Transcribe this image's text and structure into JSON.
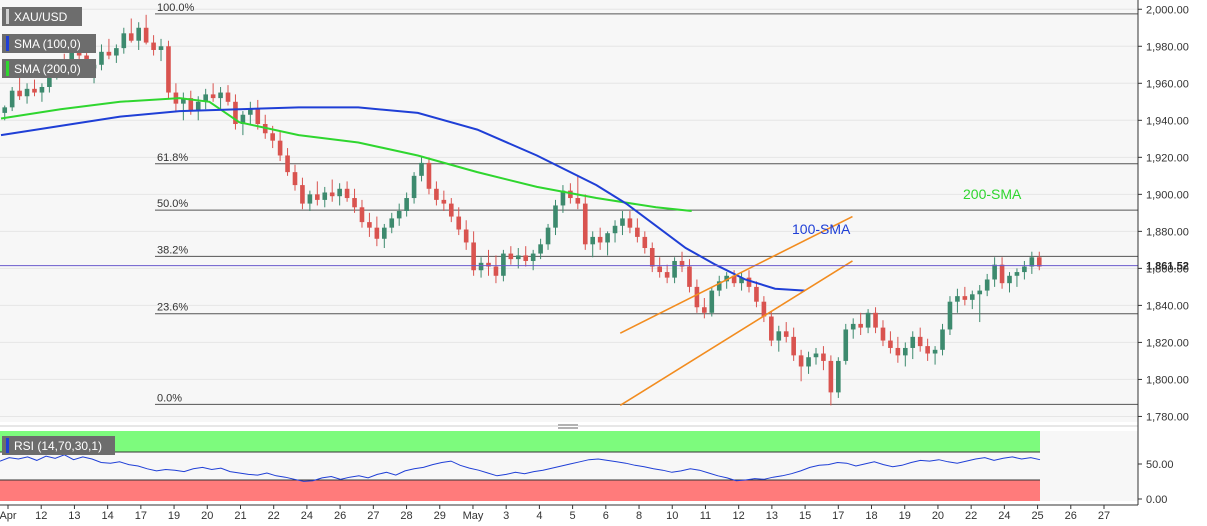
{
  "chart_data": [
    {
      "type": "candlestick",
      "title": "XAU/USD",
      "legend": [
        {
          "label": "XAU/USD",
          "color": "#d0d0d0"
        },
        {
          "label": "SMA (100,0)",
          "color": "#1f3fd6"
        },
        {
          "label": "SMA (200,0)",
          "color": "#2fd62f"
        }
      ],
      "price_axis": {
        "range": [
          1777,
          2005
        ],
        "ticks": [
          "2,000.00",
          "1,980.00",
          "1,960.00",
          "1,940.00",
          "1,920.00",
          "1,900.00",
          "1,880.00",
          "1,860.00",
          "1,840.00",
          "1,820.00",
          "1,800.00",
          "1,780.00"
        ],
        "tick_values": [
          2000,
          1980,
          1960,
          1940,
          1920,
          1900,
          1880,
          1860,
          1840,
          1820,
          1800,
          1780
        ]
      },
      "x_axis": {
        "labels": [
          "Apr",
          "12",
          "13",
          "14",
          "17",
          "19",
          "20",
          "21",
          "22",
          "24",
          "26",
          "27",
          "28",
          "29",
          "May",
          "3",
          "4",
          "5",
          "6",
          "8",
          "10",
          "11",
          "12",
          "13",
          "15",
          "17",
          "18",
          "19",
          "20",
          "22",
          "24",
          "25",
          "26",
          "27"
        ]
      },
      "current_price": {
        "value": 1861.52,
        "label": "1,861.52",
        "color": "#6a5acd"
      },
      "fibonacci": [
        {
          "label": "100.0%",
          "price": 1997.5
        },
        {
          "label": "61.8%",
          "price": 1916.5
        },
        {
          "label": "50.0%",
          "price": 1891.5
        },
        {
          "label": "38.2%",
          "price": 1866.5
        },
        {
          "label": "23.6%",
          "price": 1835.5
        },
        {
          "label": "0.0%",
          "price": 1786.5
        }
      ],
      "sma_100": {
        "label": "100-SMA",
        "color": "#1f3fd6",
        "points": [
          [
            0,
            1932
          ],
          [
            20,
            1937
          ],
          [
            40,
            1942
          ],
          [
            60,
            1945
          ],
          [
            80,
            1946
          ],
          [
            100,
            1947
          ],
          [
            120,
            1947
          ],
          [
            140,
            1944
          ],
          [
            160,
            1935
          ],
          [
            180,
            1921
          ],
          [
            200,
            1905
          ],
          [
            210,
            1895
          ],
          [
            220,
            1883
          ],
          [
            230,
            1871
          ],
          [
            240,
            1862
          ],
          [
            250,
            1854
          ],
          [
            260,
            1849
          ],
          [
            270,
            1848
          ]
        ]
      },
      "sma_200": {
        "label": "200-SMA",
        "color": "#2fd62f",
        "points": [
          [
            0,
            1941
          ],
          [
            20,
            1946
          ],
          [
            40,
            1950
          ],
          [
            60,
            1952
          ],
          [
            70,
            1950
          ],
          [
            80,
            1939
          ],
          [
            100,
            1932
          ],
          [
            120,
            1928
          ],
          [
            140,
            1921
          ],
          [
            160,
            1912
          ],
          [
            180,
            1904
          ],
          [
            200,
            1898
          ],
          [
            220,
            1893
          ],
          [
            232,
            1891
          ]
        ]
      },
      "channel_upper": {
        "color": "#f28c1f",
        "points": [
          [
            208,
            1825
          ],
          [
            286,
            1888
          ]
        ]
      },
      "channel_lower": {
        "color": "#f28c1f",
        "points": [
          [
            208,
            1786
          ],
          [
            286,
            1864
          ]
        ]
      },
      "candles": [
        [
          1944,
          1948,
          1940,
          1947
        ],
        [
          1947,
          1958,
          1945,
          1956
        ],
        [
          1956,
          1964,
          1951,
          1953
        ],
        [
          1953,
          1960,
          1949,
          1957
        ],
        [
          1957,
          1962,
          1953,
          1955
        ],
        [
          1955,
          1960,
          1950,
          1958
        ],
        [
          1958,
          1968,
          1955,
          1965
        ],
        [
          1965,
          1973,
          1962,
          1971
        ],
        [
          1971,
          1976,
          1966,
          1969
        ],
        [
          1969,
          1982,
          1967,
          1978
        ],
        [
          1978,
          1985,
          1972,
          1975
        ],
        [
          1975,
          1980,
          1965,
          1968
        ],
        [
          1968,
          1972,
          1960,
          1970
        ],
        [
          1970,
          1981,
          1967,
          1977
        ],
        [
          1977,
          1984,
          1973,
          1975
        ],
        [
          1975,
          1981,
          1971,
          1979
        ],
        [
          1979,
          1990,
          1976,
          1987
        ],
        [
          1987,
          1995,
          1982,
          1983
        ],
        [
          1983,
          1993,
          1978,
          1990
        ],
        [
          1990,
          1997,
          1981,
          1982
        ],
        [
          1982,
          1986,
          1975,
          1978
        ],
        [
          1978,
          1984,
          1972,
          1980
        ],
        [
          1980,
          1983,
          1952,
          1955
        ],
        [
          1955,
          1960,
          1945,
          1949
        ],
        [
          1949,
          1955,
          1940,
          1952
        ],
        [
          1952,
          1956,
          1943,
          1945
        ],
        [
          1945,
          1953,
          1940,
          1950
        ],
        [
          1950,
          1957,
          1946,
          1954
        ],
        [
          1954,
          1960,
          1950,
          1952
        ],
        [
          1952,
          1958,
          1946,
          1955
        ],
        [
          1955,
          1959,
          1948,
          1950
        ],
        [
          1950,
          1954,
          1935,
          1938
        ],
        [
          1938,
          1945,
          1932,
          1943
        ],
        [
          1943,
          1950,
          1938,
          1946
        ],
        [
          1946,
          1951,
          1935,
          1938
        ],
        [
          1938,
          1943,
          1930,
          1933
        ],
        [
          1933,
          1937,
          1925,
          1929
        ],
        [
          1929,
          1934,
          1918,
          1921
        ],
        [
          1921,
          1925,
          1910,
          1912
        ],
        [
          1912,
          1916,
          1902,
          1905
        ],
        [
          1905,
          1909,
          1892,
          1895
        ],
        [
          1895,
          1902,
          1891,
          1900
        ],
        [
          1900,
          1907,
          1894,
          1897
        ],
        [
          1897,
          1904,
          1893,
          1901
        ],
        [
          1901,
          1908,
          1896,
          1899
        ],
        [
          1899,
          1906,
          1894,
          1903
        ],
        [
          1903,
          1907,
          1896,
          1898
        ],
        [
          1898,
          1903,
          1890,
          1893
        ],
        [
          1893,
          1897,
          1882,
          1885
        ],
        [
          1885,
          1890,
          1877,
          1882
        ],
        [
          1882,
          1888,
          1872,
          1876
        ],
        [
          1876,
          1884,
          1871,
          1882
        ],
        [
          1882,
          1890,
          1879,
          1887
        ],
        [
          1887,
          1895,
          1883,
          1891
        ],
        [
          1891,
          1901,
          1888,
          1898
        ],
        [
          1898,
          1912,
          1895,
          1910
        ],
        [
          1910,
          1920,
          1907,
          1917
        ],
        [
          1917,
          1920,
          1900,
          1903
        ],
        [
          1903,
          1907,
          1894,
          1897
        ],
        [
          1897,
          1902,
          1891,
          1895
        ],
        [
          1895,
          1898,
          1885,
          1888
        ],
        [
          1888,
          1893,
          1878,
          1881
        ],
        [
          1881,
          1886,
          1870,
          1874
        ],
        [
          1874,
          1880,
          1856,
          1859
        ],
        [
          1859,
          1866,
          1855,
          1863
        ],
        [
          1863,
          1870,
          1856,
          1861
        ],
        [
          1861,
          1867,
          1852,
          1856
        ],
        [
          1856,
          1870,
          1853,
          1868
        ],
        [
          1868,
          1872,
          1862,
          1865
        ],
        [
          1865,
          1871,
          1860,
          1867
        ],
        [
          1867,
          1872,
          1861,
          1864
        ],
        [
          1864,
          1870,
          1859,
          1868
        ],
        [
          1868,
          1876,
          1865,
          1873
        ],
        [
          1873,
          1884,
          1870,
          1882
        ],
        [
          1882,
          1897,
          1878,
          1894
        ],
        [
          1894,
          1905,
          1890,
          1902
        ],
        [
          1902,
          1906,
          1895,
          1898
        ],
        [
          1898,
          1910,
          1892,
          1895
        ],
        [
          1895,
          1900,
          1870,
          1873
        ],
        [
          1873,
          1880,
          1866,
          1877
        ],
        [
          1877,
          1882,
          1870,
          1874
        ],
        [
          1874,
          1880,
          1867,
          1879
        ],
        [
          1879,
          1886,
          1874,
          1883
        ],
        [
          1883,
          1891,
          1878,
          1887
        ],
        [
          1887,
          1891,
          1879,
          1882
        ],
        [
          1882,
          1887,
          1874,
          1877
        ],
        [
          1877,
          1880,
          1868,
          1871
        ],
        [
          1871,
          1874,
          1858,
          1861
        ],
        [
          1861,
          1866,
          1855,
          1858
        ],
        [
          1858,
          1862,
          1852,
          1855
        ],
        [
          1855,
          1866,
          1852,
          1864
        ],
        [
          1864,
          1869,
          1858,
          1861
        ],
        [
          1861,
          1865,
          1847,
          1850
        ],
        [
          1850,
          1854,
          1836,
          1839
        ],
        [
          1839,
          1844,
          1833,
          1836
        ],
        [
          1836,
          1850,
          1834,
          1848
        ],
        [
          1848,
          1856,
          1845,
          1853
        ],
        [
          1853,
          1858,
          1849,
          1856
        ],
        [
          1856,
          1859,
          1850,
          1852
        ],
        [
          1852,
          1858,
          1848,
          1855
        ],
        [
          1855,
          1859,
          1847,
          1850
        ],
        [
          1850,
          1853,
          1839,
          1842
        ],
        [
          1842,
          1845,
          1831,
          1834
        ],
        [
          1834,
          1837,
          1818,
          1821
        ],
        [
          1821,
          1829,
          1815,
          1826
        ],
        [
          1826,
          1831,
          1820,
          1823
        ],
        [
          1823,
          1828,
          1810,
          1813
        ],
        [
          1813,
          1816,
          1799,
          1807
        ],
        [
          1807,
          1815,
          1803,
          1812
        ],
        [
          1812,
          1817,
          1808,
          1814
        ],
        [
          1814,
          1818,
          1805,
          1810
        ],
        [
          1810,
          1813,
          1786,
          1793
        ],
        [
          1793,
          1812,
          1790,
          1810
        ],
        [
          1810,
          1830,
          1808,
          1827
        ],
        [
          1827,
          1833,
          1822,
          1830
        ],
        [
          1830,
          1836,
          1824,
          1828
        ],
        [
          1828,
          1838,
          1825,
          1836
        ],
        [
          1836,
          1839,
          1825,
          1828
        ],
        [
          1828,
          1832,
          1818,
          1821
        ],
        [
          1821,
          1826,
          1814,
          1817
        ],
        [
          1817,
          1823,
          1809,
          1813
        ],
        [
          1813,
          1820,
          1807,
          1817
        ],
        [
          1817,
          1826,
          1811,
          1823
        ],
        [
          1823,
          1828,
          1815,
          1818
        ],
        [
          1818,
          1822,
          1810,
          1814
        ],
        [
          1814,
          1818,
          1808,
          1816
        ],
        [
          1816,
          1830,
          1813,
          1827
        ],
        [
          1827,
          1845,
          1824,
          1842
        ],
        [
          1842,
          1849,
          1836,
          1845
        ],
        [
          1845,
          1850,
          1840,
          1843
        ],
        [
          1843,
          1848,
          1838,
          1846
        ],
        [
          1846,
          1851,
          1831,
          1848
        ],
        [
          1848,
          1857,
          1845,
          1854
        ],
        [
          1854,
          1866,
          1850,
          1862
        ],
        [
          1862,
          1866,
          1849,
          1852
        ],
        [
          1852,
          1858,
          1847,
          1856
        ],
        [
          1856,
          1860,
          1850,
          1858
        ],
        [
          1858,
          1864,
          1854,
          1861
        ],
        [
          1861,
          1869,
          1857,
          1866
        ],
        [
          1866,
          1869,
          1859,
          1861
        ]
      ]
    },
    {
      "type": "line",
      "title": "RSI (14,70,30,1)",
      "y_axis": {
        "range": [
          0,
          100
        ],
        "ticks": [
          "50.00",
          "0.00"
        ],
        "tick_values": [
          50,
          0
        ]
      },
      "overbought": 70,
      "oversold": 30,
      "zone_colors": {
        "upper": "#7dfb7d",
        "lower": "#ff7b7b"
      },
      "line_color": "#1f3fd6",
      "values": [
        57,
        62,
        60,
        63,
        58,
        64,
        61,
        66,
        59,
        63,
        60,
        55,
        54,
        56,
        52,
        50,
        46,
        43,
        45,
        44,
        42,
        46,
        48,
        45,
        47,
        42,
        40,
        38,
        37,
        40,
        36,
        34,
        31,
        28,
        29,
        33,
        35,
        31,
        34,
        36,
        33,
        38,
        41,
        37,
        43,
        46,
        48,
        52,
        55,
        57,
        51,
        47,
        44,
        40,
        36,
        38,
        41,
        39,
        42,
        44,
        47,
        50,
        53,
        56,
        59,
        60,
        58,
        56,
        54,
        51,
        49,
        46,
        44,
        41,
        43,
        46,
        44,
        40,
        36,
        33,
        29,
        30,
        32,
        31,
        34,
        36,
        39,
        43,
        48,
        51,
        52,
        55,
        54,
        50,
        53,
        56,
        52,
        49,
        51,
        55,
        58,
        57,
        59,
        56,
        54,
        57,
        60,
        62,
        58,
        61,
        63,
        60,
        62,
        59
      ]
    }
  ]
}
